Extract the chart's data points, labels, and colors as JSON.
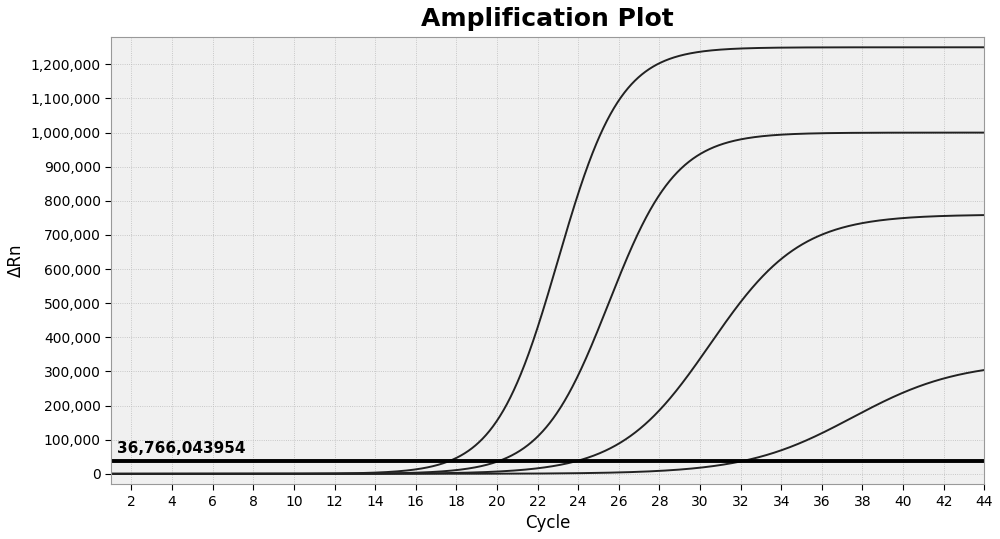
{
  "title": "Amplification Plot",
  "xlabel": "Cycle",
  "ylabel": "ΔRn",
  "xlim": [
    1,
    44
  ],
  "ylim": [
    -30000,
    1280000
  ],
  "yticks": [
    0,
    100000,
    200000,
    300000,
    400000,
    500000,
    600000,
    700000,
    800000,
    900000,
    1000000,
    1100000,
    1200000
  ],
  "xticks": [
    2,
    4,
    6,
    8,
    10,
    12,
    14,
    16,
    18,
    20,
    22,
    24,
    26,
    28,
    30,
    32,
    34,
    36,
    38,
    40,
    42,
    44
  ],
  "threshold_y": 36766.043954,
  "threshold_label": "36,766,043954",
  "background_color": "#ffffff",
  "plot_bg_color": "#f0f0f0",
  "grid_color": "#bbbbbb",
  "curves": [
    {
      "L": 1250000,
      "k": 0.65,
      "x0": 23.0
    },
    {
      "L": 1000000,
      "k": 0.6,
      "x0": 25.5
    },
    {
      "L": 760000,
      "k": 0.45,
      "x0": 30.5
    },
    {
      "L": 330000,
      "k": 0.38,
      "x0": 37.5
    }
  ],
  "curve_color": "#222222",
  "curve_linewidth": 1.4,
  "threshold_linewidth": 2.8,
  "threshold_color": "#000000",
  "title_fontsize": 18,
  "axis_label_fontsize": 12,
  "tick_fontsize": 10
}
